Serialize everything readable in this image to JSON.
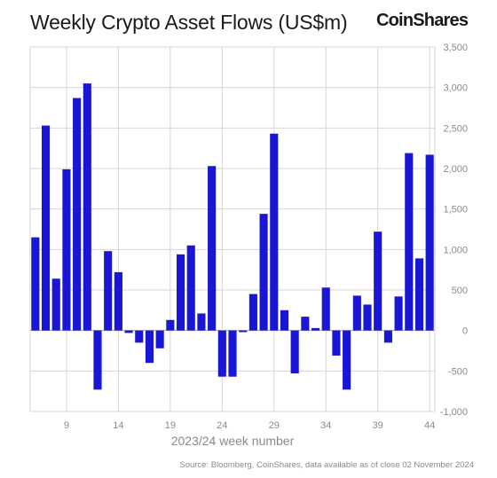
{
  "header": {
    "title": "Weekly Crypto Asset Flows (US$m)",
    "brand": "CoinShares"
  },
  "footer": {
    "source": "Source: Bloomberg, CoinShares, data available as of close 02 November 2024"
  },
  "colors": {
    "bar": "#1a16d6",
    "grid": "#d6d6d6",
    "zero_line": "#a0a0a0"
  },
  "chart_data": {
    "type": "bar",
    "title": "Weekly Crypto Asset Flows (US$m)",
    "xlabel": "2023/24 week number",
    "ylabel": "",
    "ylim": [
      -1000,
      3500
    ],
    "yticks": [
      -1000,
      -500,
      0,
      500,
      1000,
      1500,
      2000,
      2500,
      3000,
      3500
    ],
    "ytick_labels": [
      "-1,000",
      "-500",
      "0",
      "500",
      "1,000",
      "1,500",
      "2,000",
      "2,500",
      "3,000",
      "3,500"
    ],
    "xticks": [
      9,
      14,
      19,
      24,
      29,
      34,
      39,
      44
    ],
    "y_axis_position": "right",
    "grid": true,
    "categories": [
      6,
      7,
      8,
      9,
      10,
      11,
      12,
      13,
      14,
      15,
      16,
      17,
      18,
      19,
      20,
      21,
      22,
      23,
      24,
      25,
      26,
      27,
      28,
      29,
      30,
      31,
      32,
      33,
      34,
      35,
      36,
      37,
      38,
      39,
      40,
      41,
      42,
      43,
      44
    ],
    "values": [
      1150,
      2530,
      640,
      1990,
      2870,
      3050,
      -730,
      980,
      720,
      -30,
      -150,
      -400,
      -220,
      130,
      940,
      1050,
      210,
      2030,
      -570,
      -570,
      -20,
      450,
      1440,
      2430,
      250,
      -530,
      170,
      30,
      530,
      -310,
      -730,
      430,
      320,
      1220,
      -150,
      420,
      2190,
      890,
      2170
    ]
  }
}
